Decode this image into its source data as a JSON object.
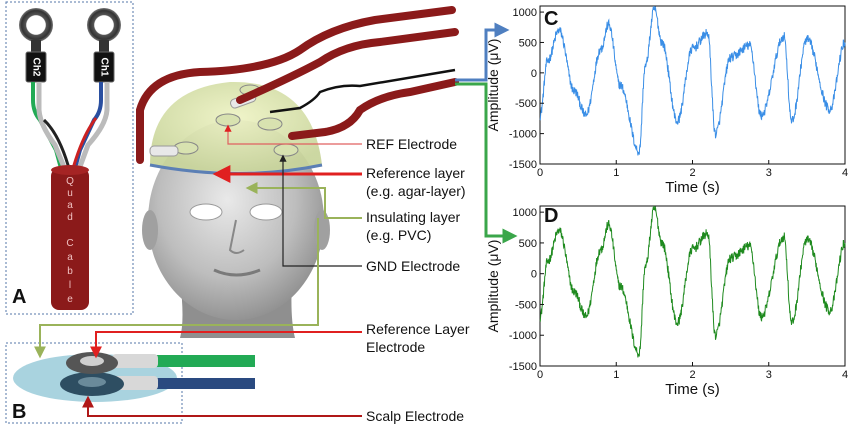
{
  "panels": {
    "a": "A",
    "b": "B",
    "c": "C",
    "d": "D"
  },
  "cable": {
    "ch1": "Ch1",
    "ch2": "Ch2",
    "letters": [
      "Q",
      "u",
      "a",
      "d",
      "C",
      "a",
      "b",
      "l",
      "e"
    ]
  },
  "labels": {
    "ref_electrode": "REF Electrode",
    "reference_layer": "Reference layer",
    "reference_layer_eg": "(e.g. agar-layer)",
    "insulating_layer": "Insulating layer",
    "insulating_layer_eg": "(e.g. PVC)",
    "gnd_electrode": "GND Electrode",
    "reference_layer_electrode_1": "Reference Layer",
    "reference_layer_electrode_2": "Electrode",
    "scalp_electrode": "Scalp Electrode"
  },
  "colors": {
    "trace_c": "#3a8ee6",
    "trace_d": "#1e8a1e",
    "cable_red": "#8b1a1a",
    "arrow_blue": "#4f7fc0",
    "arrow_green": "#3aa64a",
    "arrow_red": "#e02020",
    "arrow_olive": "#9ab35a"
  },
  "chart_data": [
    {
      "type": "line",
      "panel": "C",
      "xlabel": "Time (s)",
      "ylabel": "Amplitude (μV)",
      "xlim": [
        0,
        4
      ],
      "ylim": [
        -1500,
        1100
      ],
      "xticks": [
        0,
        1,
        2,
        3,
        4
      ],
      "yticks": [
        1000,
        500,
        0,
        -500,
        -1000,
        -1500
      ],
      "xticklabels": [
        "0",
        "1",
        "2",
        "3",
        "4"
      ],
      "yticklabels": [
        "1000",
        "500",
        "0",
        "-500",
        "-1000",
        "-1500"
      ],
      "series": [
        {
          "x": [
            0,
            0.1,
            0.25,
            0.45,
            0.6,
            0.8,
            0.9,
            1.05,
            1.3,
            1.38,
            1.5,
            1.6,
            1.8,
            2.0,
            2.2,
            2.3,
            2.5,
            2.75,
            2.9,
            3.2,
            3.3,
            3.5,
            3.8,
            4.0
          ],
          "y": [
            -700,
            200,
            700,
            -300,
            -700,
            400,
            800,
            -200,
            -1300,
            100,
            1050,
            500,
            -800,
            400,
            650,
            -1000,
            250,
            450,
            -700,
            600,
            -800,
            550,
            -600,
            500
          ]
        }
      ]
    },
    {
      "type": "line",
      "panel": "D",
      "xlabel": "Time (s)",
      "ylabel": "Amplitude (μV)",
      "xlim": [
        0,
        4
      ],
      "ylim": [
        -1500,
        1100
      ],
      "xticks": [
        0,
        1,
        2,
        3,
        4
      ],
      "yticks": [
        1000,
        500,
        0,
        -500,
        -1000,
        -1500
      ],
      "xticklabels": [
        "0",
        "1",
        "2",
        "3",
        "4"
      ],
      "yticklabels": [
        "1000",
        "500",
        "0",
        "-500",
        "-1000",
        "-1500"
      ],
      "series": [
        {
          "x": [
            0,
            0.1,
            0.25,
            0.45,
            0.6,
            0.8,
            0.9,
            1.05,
            1.3,
            1.38,
            1.5,
            1.6,
            1.8,
            2.0,
            2.2,
            2.3,
            2.5,
            2.75,
            2.9,
            3.2,
            3.3,
            3.5,
            3.8,
            4.0
          ],
          "y": [
            -700,
            200,
            700,
            -300,
            -700,
            400,
            800,
            -200,
            -1300,
            100,
            1050,
            500,
            -800,
            400,
            650,
            -1000,
            250,
            450,
            -700,
            600,
            -800,
            550,
            -600,
            500
          ]
        }
      ]
    }
  ]
}
